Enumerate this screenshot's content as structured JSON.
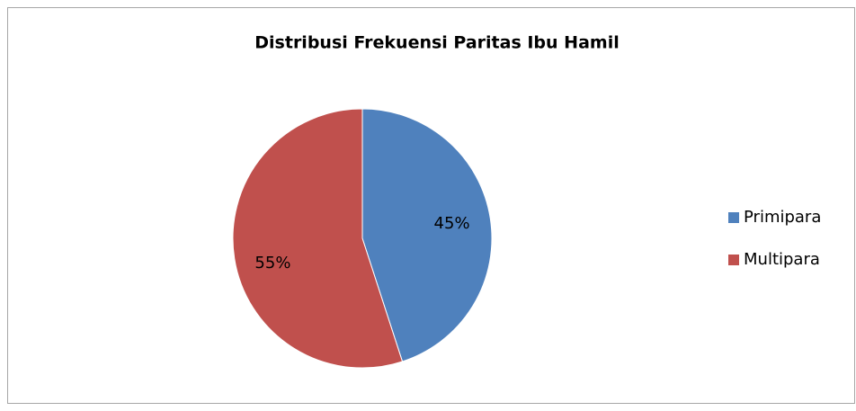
{
  "chart_data": {
    "type": "pie",
    "title": "Distribusi Frekuensi Paritas Ibu Hamil",
    "categories": [
      "Primipara",
      "Multipara"
    ],
    "values": [
      45,
      55
    ],
    "value_labels": [
      "45%",
      "55%"
    ],
    "colors": [
      "#4f81bd",
      "#c0504d"
    ],
    "legend": "right"
  }
}
